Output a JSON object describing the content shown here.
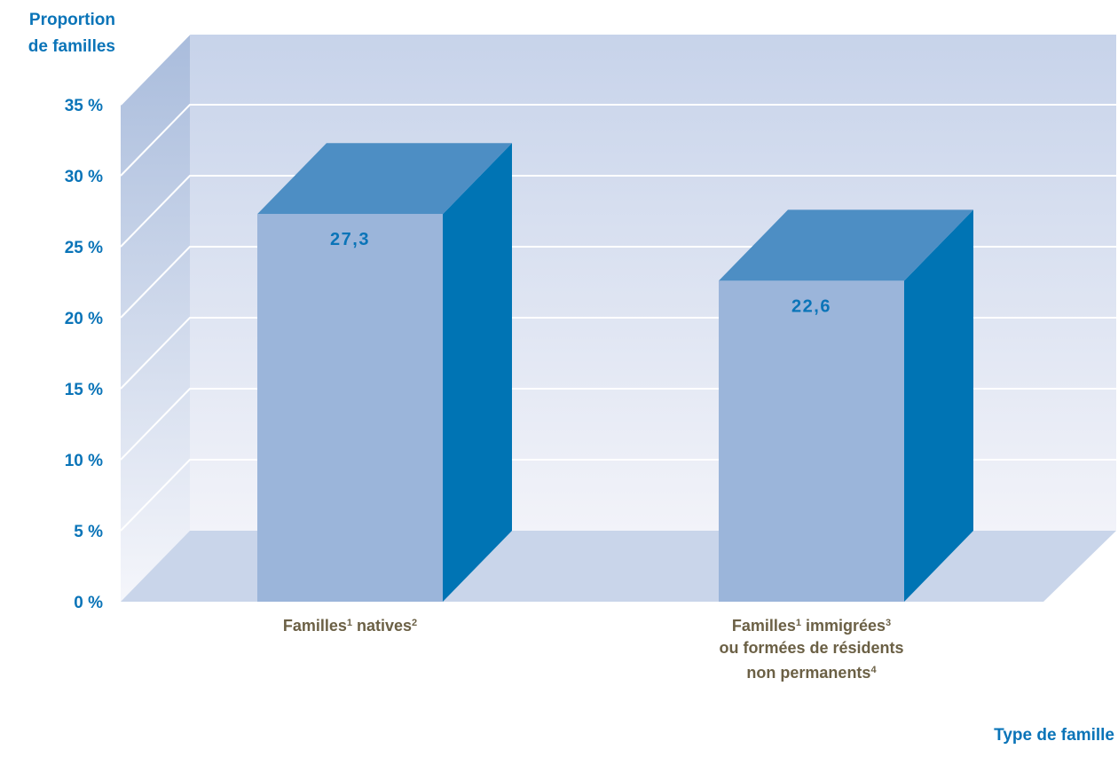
{
  "chart_data": {
    "type": "bar",
    "ylabel_line1": "Proportion",
    "ylabel_line2": "de familles",
    "xlabel": "Type de famille",
    "ylim": [
      0,
      35
    ],
    "yticks": [
      0,
      5,
      10,
      15,
      20,
      25,
      30,
      35
    ],
    "ytick_labels": [
      "0 %",
      "5 %",
      "10 %",
      "15 %",
      "20 %",
      "25 %",
      "30 %",
      "35 %"
    ],
    "categories": [
      {
        "lines": [
          [
            {
              "t": "Familles"
            },
            {
              "t": "1",
              "sup": true
            },
            {
              "t": " natives"
            },
            {
              "t": "2",
              "sup": true
            }
          ]
        ]
      },
      {
        "lines": [
          [
            {
              "t": "Familles"
            },
            {
              "t": "1",
              "sup": true
            },
            {
              "t": " immigrées"
            },
            {
              "t": "3",
              "sup": true
            }
          ],
          [
            {
              "t": "ou formées de résidents"
            }
          ],
          [
            {
              "t": "non permanents"
            },
            {
              "t": "4",
              "sup": true
            }
          ]
        ]
      }
    ],
    "values": [
      27.3,
      22.6
    ],
    "value_labels": [
      "27,3",
      "22,6"
    ],
    "grid": true
  },
  "colors": {
    "axis_text": "#0a74b8",
    "category_text": "#6b6045",
    "bar_front": "#9bb5da",
    "bar_top": "#4d8ec4",
    "bar_side": "#0074b4",
    "value_label": "#0a74b8"
  }
}
